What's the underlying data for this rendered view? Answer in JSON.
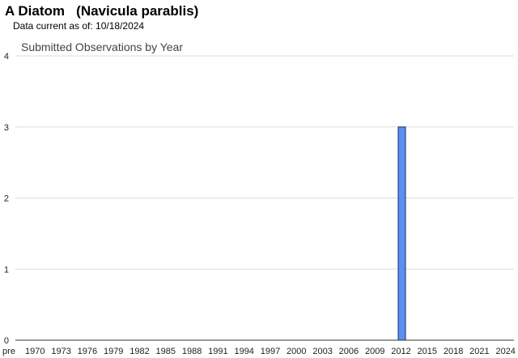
{
  "header": {
    "species_title": "A Diatom   (Navicula parablis)",
    "data_current": "Data current as of: 10/18/2024"
  },
  "chart_data": {
    "type": "bar",
    "title": "Submitted Observations by Year",
    "xlabel": "",
    "ylabel": "",
    "ylim": [
      0,
      4
    ],
    "yticks": [
      0,
      1,
      2,
      3,
      4
    ],
    "grid": true,
    "x_tick_labels": [
      "pre",
      "1970",
      "1973",
      "1976",
      "1979",
      "1982",
      "1985",
      "1988",
      "1991",
      "1994",
      "1997",
      "2000",
      "2003",
      "2006",
      "2009",
      "2012",
      "2015",
      "2018",
      "2021",
      "2024"
    ],
    "categories": [
      "2012"
    ],
    "values": [
      3
    ],
    "colors": {
      "bar_fill": "#5b8ff0",
      "bar_stroke": "#1a2f6e",
      "grid": "#dddddd",
      "axis": "#333333"
    }
  }
}
